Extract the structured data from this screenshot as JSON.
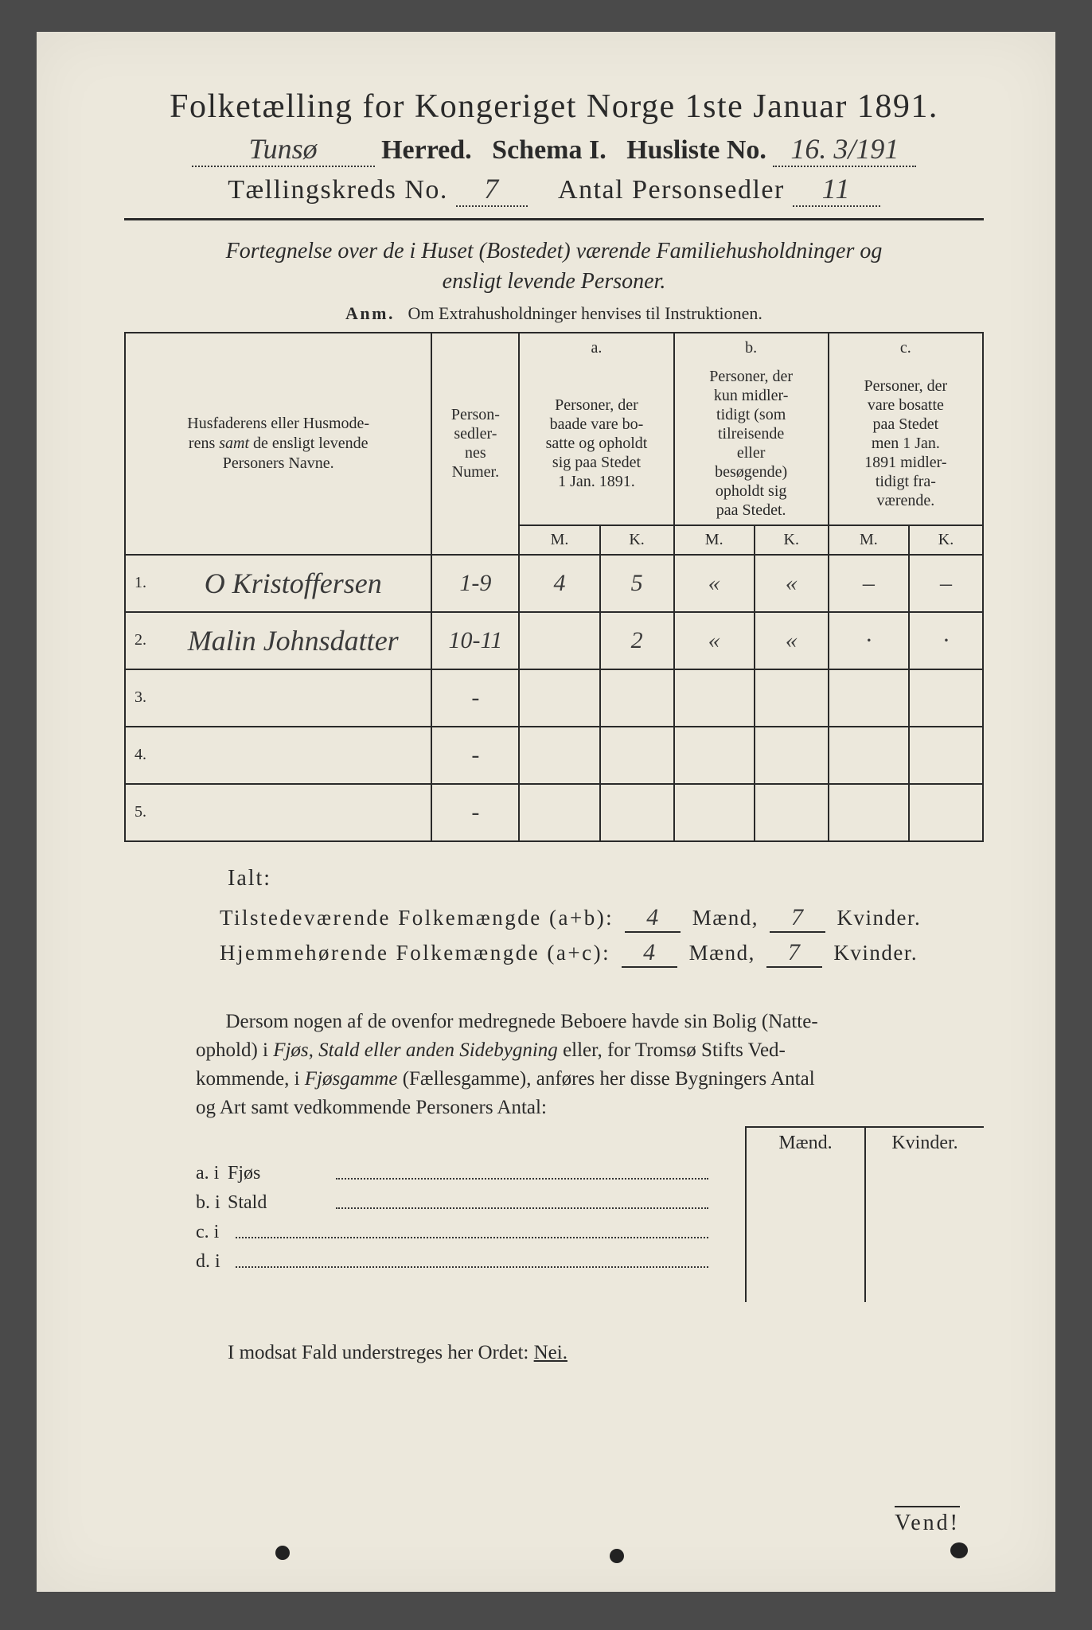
{
  "header": {
    "title": "Folketælling for Kongeriget Norge 1ste Januar 1891.",
    "herred_value": "Tunsø",
    "herred_label": "Herred.",
    "schema_label": "Schema I.",
    "husliste_label": "Husliste No.",
    "husliste_value": "16. 3/191",
    "kreds_label": "Tællingskreds No.",
    "kreds_value": "7",
    "antal_label": "Antal Personsedler",
    "antal_value": "11"
  },
  "subtitle": "Fortegnelse over de i Huset (Bostedet) værende Familiehusholdninger og ensligt levende Personer.",
  "anm_label": "Anm.",
  "anm_text": "Om Extrahusholdninger henvises til Instruktionen.",
  "table": {
    "col_names": "Husfaderens eller Husmoderens samt de ensligt levende Personers Navne.",
    "col_sedler": "Person-sedler-nes Numer.",
    "col_a_head": "a.",
    "col_a": "Personer, der baade vare bosatte og opholdt sig paa Stedet 1 Jan. 1891.",
    "col_b_head": "b.",
    "col_b": "Personer, der kun midlertidigt (som tilreisende eller besøgende) opholdt sig paa Stedet.",
    "col_c_head": "c.",
    "col_c": "Personer, der vare bosatte paa Stedet men 1 Jan. 1891 midlertidigt fraværende.",
    "M": "M.",
    "K": "K.",
    "rows": [
      {
        "n": "1.",
        "name": "O Kristoffersen",
        "sedler": "1-9",
        "aM": "4",
        "aK": "5",
        "bM": "«",
        "bK": "«",
        "cM": "–",
        "cK": "–"
      },
      {
        "n": "2.",
        "name": "Malin Johnsdatter",
        "sedler": "10-11",
        "aM": "",
        "aK": "2",
        "bM": "«",
        "bK": "«",
        "cM": "·",
        "cK": "·"
      },
      {
        "n": "3.",
        "name": "",
        "sedler": "-",
        "aM": "",
        "aK": "",
        "bM": "",
        "bK": "",
        "cM": "",
        "cK": ""
      },
      {
        "n": "4.",
        "name": "",
        "sedler": "-",
        "aM": "",
        "aK": "",
        "bM": "",
        "bK": "",
        "cM": "",
        "cK": ""
      },
      {
        "n": "5.",
        "name": "",
        "sedler": "-",
        "aM": "",
        "aK": "",
        "bM": "",
        "bK": "",
        "cM": "",
        "cK": ""
      }
    ]
  },
  "totals": {
    "ialt": "Ialt:",
    "line1_label": "Tilstedeværende Folkemængde (a+b):",
    "line2_label": "Hjemmehørende Folkemængde (a+c):",
    "maend": "Mænd,",
    "kvinder": "Kvinder.",
    "tb_m": "4",
    "tb_k": "7",
    "hb_m": "4",
    "hb_k": "7"
  },
  "para": "Dersom nogen af de ovenfor medregnede Beboere havde sin Bolig (Natteophold) i Fjøs, Stald eller anden Sidebygning eller, for Tromsø Stifts Vedkommende, i Fjøsgamme (Fællesgamme), anføres her disse Bygningers Antal og Art samt vedkommende Personers Antal:",
  "mk": {
    "m": "Mænd.",
    "k": "Kvinder."
  },
  "sb": {
    "a": "a.  i",
    "a_lab": "Fjøs",
    "b": "b.  i",
    "b_lab": "Stald",
    "c": "c.  i",
    "d": "d.  i"
  },
  "nei": "I modsat Fald understreges her Ordet:",
  "nei_word": "Nei.",
  "vend": "Vend!",
  "colors": {
    "paper": "#ece8dc",
    "ink": "#2a2a2a",
    "bg": "#4a4a4a"
  }
}
